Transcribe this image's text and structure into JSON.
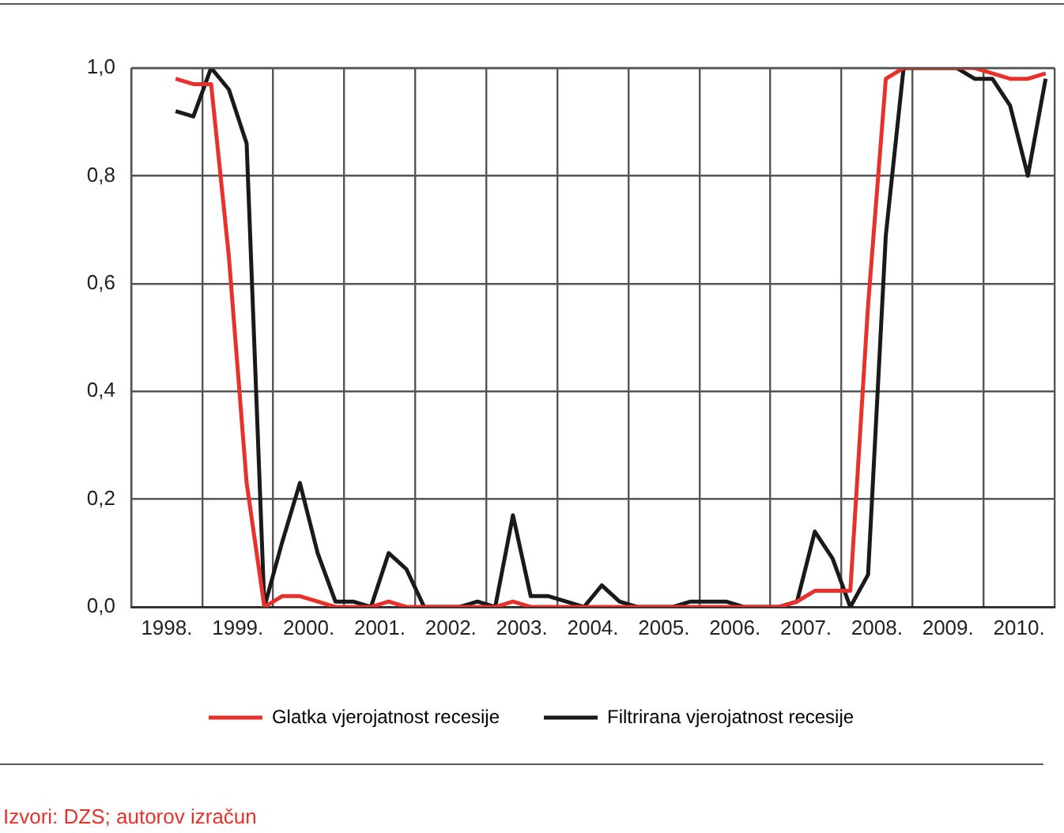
{
  "chart_data": {
    "type": "line",
    "x": [
      1998.625,
      1998.875,
      1999.125,
      1999.375,
      1999.625,
      1999.875,
      2000.125,
      2000.375,
      2000.625,
      2000.875,
      2001.125,
      2001.375,
      2001.625,
      2001.875,
      2002.125,
      2002.375,
      2002.625,
      2002.875,
      2003.125,
      2003.375,
      2003.625,
      2003.875,
      2004.125,
      2004.375,
      2004.625,
      2004.875,
      2005.125,
      2005.375,
      2005.625,
      2005.875,
      2006.125,
      2006.375,
      2006.625,
      2006.875,
      2007.125,
      2007.375,
      2007.625,
      2007.875,
      2008.125,
      2008.375,
      2008.625,
      2008.875,
      2009.125,
      2009.375,
      2009.625,
      2009.875,
      2010.125,
      2010.375,
      2010.625,
      2010.875
    ],
    "series": [
      {
        "name": "Glatka vjerojatnost recesije",
        "color": "#e8312a",
        "values": [
          0.98,
          0.97,
          0.97,
          0.65,
          0.23,
          0.0,
          0.02,
          0.02,
          0.01,
          0.0,
          0.0,
          0.0,
          0.01,
          0.0,
          0.0,
          0.0,
          0.0,
          0.0,
          0.0,
          0.01,
          0.0,
          0.0,
          0.0,
          0.0,
          0.0,
          0.0,
          0.0,
          0.0,
          0.0,
          0.0,
          0.0,
          0.0,
          0.0,
          0.0,
          0.0,
          0.01,
          0.03,
          0.03,
          0.03,
          0.56,
          0.98,
          1.0,
          1.0,
          1.0,
          1.0,
          1.0,
          0.99,
          0.98,
          0.98,
          0.99
        ]
      },
      {
        "name": "Filtrirana vjerojatnost recesije",
        "color": "#1a1a1a",
        "values": [
          0.92,
          0.91,
          1.0,
          0.96,
          0.86,
          0.0,
          0.12,
          0.23,
          0.1,
          0.01,
          0.01,
          0.0,
          0.1,
          0.07,
          0.0,
          0.0,
          0.0,
          0.01,
          0.0,
          0.17,
          0.02,
          0.02,
          0.01,
          0.0,
          0.04,
          0.01,
          0.0,
          0.0,
          0.0,
          0.01,
          0.01,
          0.01,
          0.0,
          0.0,
          0.0,
          0.01,
          0.14,
          0.09,
          0.0,
          0.06,
          0.69,
          1.0,
          1.0,
          1.0,
          1.0,
          0.98,
          0.98,
          0.93,
          0.8,
          0.98
        ]
      }
    ],
    "xlim": [
      1998,
      2011
    ],
    "xticks": [
      {
        "value": 1998,
        "label": null
      },
      {
        "value": 1998.5,
        "label": "1998."
      },
      {
        "value": 1999,
        "label": null
      },
      {
        "value": 1999.5,
        "label": "1999."
      },
      {
        "value": 2000,
        "label": null
      },
      {
        "value": 2000.5,
        "label": "2000."
      },
      {
        "value": 2001,
        "label": null
      },
      {
        "value": 2001.5,
        "label": "2001."
      },
      {
        "value": 2002,
        "label": null
      },
      {
        "value": 2002.5,
        "label": "2002."
      },
      {
        "value": 2003,
        "label": null
      },
      {
        "value": 2003.5,
        "label": "2003."
      },
      {
        "value": 2004,
        "label": null
      },
      {
        "value": 2004.5,
        "label": "2004."
      },
      {
        "value": 2005,
        "label": null
      },
      {
        "value": 2005.5,
        "label": "2005."
      },
      {
        "value": 2006,
        "label": null
      },
      {
        "value": 2006.5,
        "label": "2006."
      },
      {
        "value": 2007,
        "label": null
      },
      {
        "value": 2007.5,
        "label": "2007."
      },
      {
        "value": 2008,
        "label": null
      },
      {
        "value": 2008.5,
        "label": "2008."
      },
      {
        "value": 2009,
        "label": null
      },
      {
        "value": 2009.5,
        "label": "2009."
      },
      {
        "value": 2010,
        "label": null
      },
      {
        "value": 2010.5,
        "label": "2010."
      },
      {
        "value": 2011,
        "label": null
      }
    ],
    "ylim": [
      0,
      1
    ],
    "yticks": [
      {
        "value": 0,
        "label": "0,0"
      },
      {
        "value": 0.2,
        "label": "0,2"
      },
      {
        "value": 0.4,
        "label": "0,4"
      },
      {
        "value": 0.6,
        "label": "0,6"
      },
      {
        "value": 0.8,
        "label": "0,8"
      },
      {
        "value": 1,
        "label": "1,0"
      }
    ],
    "grid": true,
    "legend": "bottom",
    "marker": "none",
    "line_style": "solid",
    "annotations": [
      "Izvori: DZS; autorov izračun"
    ]
  }
}
